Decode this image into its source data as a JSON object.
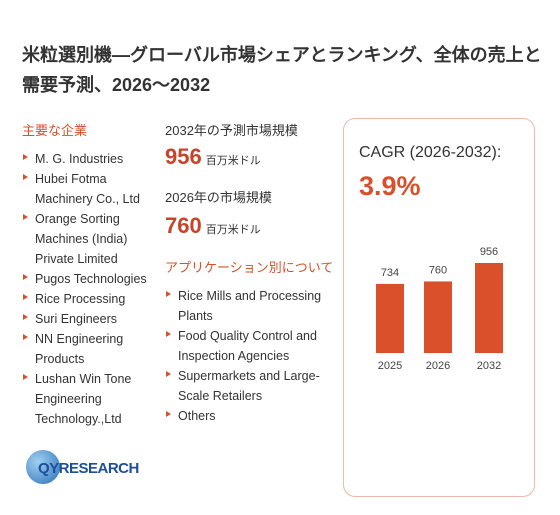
{
  "title": "米粒選別機―グローバル市場シェアとランキング、全体の売上と需要予測、2026～2032",
  "companies": {
    "heading": "主要な企業",
    "items": [
      "M. G. Industries",
      "Hubei Fotma Machinery Co., Ltd",
      "Orange Sorting Machines (India) Private Limited",
      "Pugos Technologies",
      "Rice Processing",
      "Suri Engineers",
      "NN Engineering Products",
      "Lushan Win Tone Engineering Technology.,Ltd"
    ]
  },
  "market": {
    "forecast_label": "2032年の予測市場規模",
    "forecast_value": 956,
    "forecast_unit": "百万米ドル",
    "current_label": "2026年の市場規模",
    "current_value": 760,
    "current_unit": "百万米ドル"
  },
  "applications": {
    "heading": "アプリケーション別について",
    "items": [
      "Rice Mills and Processing Plants",
      "Food Quality Control and Inspection Agencies",
      "Supermarkets and Large-Scale Retailers",
      "Others"
    ]
  },
  "cagr": {
    "label": "CAGR (2026-2032):",
    "value": "3.9%"
  },
  "logo": {
    "text": "QYRESEARCH"
  },
  "chart_data": {
    "type": "bar",
    "categories": [
      "2025",
      "2026",
      "2032"
    ],
    "values": [
      734,
      760,
      956
    ],
    "color": "#d9502b"
  }
}
